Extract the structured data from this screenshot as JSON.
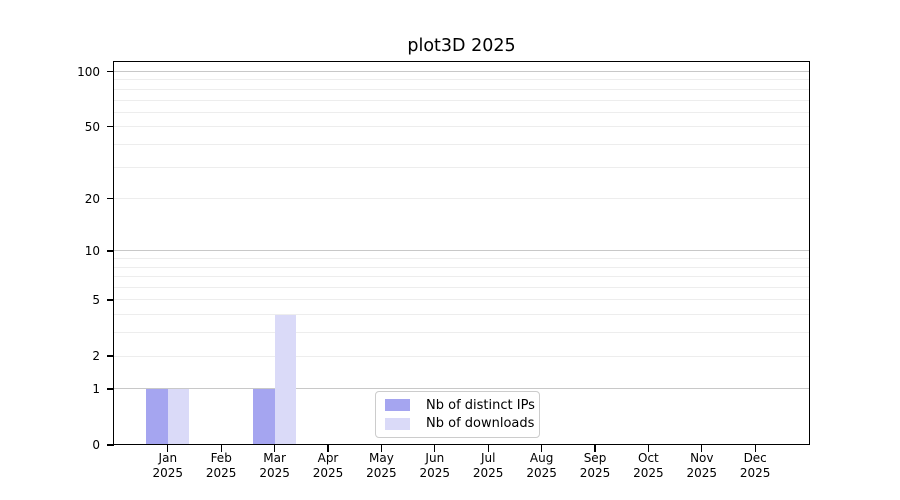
{
  "chart_data": {
    "type": "bar",
    "title": "plot3D 2025",
    "categories": [
      "Jan 2025",
      "Feb 2025",
      "Mar 2025",
      "Apr 2025",
      "May 2025",
      "Jun 2025",
      "Jul 2025",
      "Aug 2025",
      "Sep 2025",
      "Oct 2025",
      "Nov 2025",
      "Dec 2025"
    ],
    "series": [
      {
        "name": "Nb of distinct IPs",
        "color": "#a5a5f0",
        "values": [
          1,
          0,
          1,
          0,
          0,
          0,
          0,
          0,
          0,
          0,
          0,
          0
        ]
      },
      {
        "name": "Nb of downloads",
        "color": "#dadaf8",
        "values": [
          1,
          0,
          4,
          0,
          0,
          0,
          0,
          0,
          0,
          0,
          0,
          0
        ]
      }
    ],
    "xlabel": "",
    "ylabel": "",
    "yscale": "log1p",
    "ylim": [
      0,
      114
    ],
    "yticks": [
      0,
      1,
      2,
      5,
      10,
      20,
      50,
      100
    ],
    "gridlines": {
      "major": [
        1,
        10,
        100
      ],
      "minor": [
        2,
        3,
        4,
        5,
        6,
        7,
        8,
        9,
        20,
        30,
        40,
        50,
        60,
        70,
        80,
        90
      ]
    },
    "grid": true,
    "legend_position": "lower center",
    "colors": {
      "axis": "#000000",
      "grid_major": "#c8c8c8",
      "grid_minor": "#ededed",
      "background": "#ffffff"
    }
  }
}
